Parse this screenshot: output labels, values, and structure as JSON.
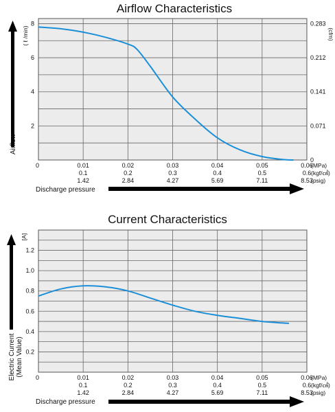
{
  "chart_data": [
    {
      "type": "line",
      "title": "Airflow Characteristics",
      "ylabel": "Airflow",
      "y_unit": "( ℓ /min)",
      "y2_unit": "(cfm)",
      "y2_ticks": [
        "0.283",
        "0.212",
        "0.141",
        "0.071",
        "0"
      ],
      "yticks": [
        2,
        4,
        6,
        8
      ],
      "ylim": [
        0,
        8.3
      ],
      "xlim": [
        0,
        0.06
      ],
      "xlabel": "Discharge pressure",
      "x_rows": [
        {
          "unit": "(MPa)",
          "labels": [
            "0",
            "0.01",
            "0.02",
            "0.03",
            "0.04",
            "0.05",
            "0.06"
          ]
        },
        {
          "unit": "(kgf/㎠)",
          "labels": [
            "0.1",
            "0.2",
            "0.3",
            "0.4",
            "0.5",
            "0.6"
          ]
        },
        {
          "unit": "(psig)",
          "labels": [
            "1.42",
            "2.84",
            "4.27",
            "5.69",
            "7.11",
            "8.53"
          ]
        }
      ],
      "grid": true,
      "series": [
        {
          "color": "#1a8fd8",
          "x": [
            0,
            0.005,
            0.01,
            0.015,
            0.02,
            0.022,
            0.025,
            0.03,
            0.035,
            0.04,
            0.045,
            0.05,
            0.055,
            0.057
          ],
          "y": [
            7.8,
            7.7,
            7.5,
            7.2,
            6.8,
            6.5,
            5.5,
            3.7,
            2.4,
            1.3,
            0.6,
            0.2,
            0.02,
            0
          ]
        }
      ]
    },
    {
      "type": "line",
      "title": "Current Characteristics",
      "ylabel": "Electric Current",
      "ylabel2": "(Mean Value)",
      "y_unit": "[A]",
      "yticks": [
        0.2,
        0.4,
        0.6,
        0.8,
        1.0,
        1.2
      ],
      "ylim": [
        0,
        1.4
      ],
      "xlim": [
        0,
        0.06
      ],
      "xlabel": "Discharge pressure",
      "x_rows": [
        {
          "unit": "(MPa)",
          "labels": [
            "0",
            "0.01",
            "0.02",
            "0.03",
            "0.04",
            "0.05",
            "0.06"
          ]
        },
        {
          "unit": "(kgf/㎠)",
          "labels": [
            "0.1",
            "0.2",
            "0.3",
            "0.4",
            "0.5",
            "0.6"
          ]
        },
        {
          "unit": "(psig)",
          "labels": [
            "1.42",
            "2.84",
            "4.27",
            "5.69",
            "7.11",
            "8.53"
          ]
        }
      ],
      "grid": true,
      "series": [
        {
          "color": "#1a8fd8",
          "x": [
            0,
            0.005,
            0.01,
            0.015,
            0.02,
            0.025,
            0.03,
            0.035,
            0.04,
            0.045,
            0.05,
            0.056
          ],
          "y": [
            0.75,
            0.82,
            0.85,
            0.84,
            0.8,
            0.73,
            0.66,
            0.6,
            0.56,
            0.53,
            0.5,
            0.48
          ]
        }
      ]
    }
  ]
}
